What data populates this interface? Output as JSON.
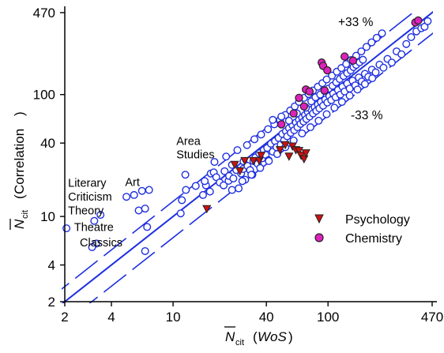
{
  "chart_data": {
    "type": "scatter",
    "scale": "log-log",
    "xlim": [
      2,
      470
    ],
    "ylim": [
      2,
      470
    ],
    "x_ticks": [
      "2",
      "4",
      "10",
      "40",
      "100",
      "470"
    ],
    "y_ticks": [
      "2",
      "4",
      "10",
      "40",
      "100",
      "470"
    ],
    "xlabel": {
      "symbol": "N",
      "subscript": "cit",
      "paren": "WoS"
    },
    "ylabel": {
      "symbol": "N",
      "subscript": "cit",
      "paren": "Correlation"
    },
    "reference_lines": [
      {
        "label": "+33 %",
        "factor": 1.33,
        "style": "dashed"
      },
      {
        "label": "",
        "factor": 1.0,
        "style": "solid"
      },
      {
        "label": "-33 %",
        "factor": 0.67,
        "style": "dashed"
      }
    ],
    "annotations": [
      {
        "text": "Literary",
        "x": 2.1,
        "y": 17.5
      },
      {
        "text": "Criticism",
        "x": 2.1,
        "y": 13.5
      },
      {
        "text": "Theory",
        "x": 2.1,
        "y": 10.4
      },
      {
        "text": "Theatre",
        "x": 2.3,
        "y": 7.6
      },
      {
        "text": "Classics",
        "x": 2.5,
        "y": 5.7
      },
      {
        "text": "Art",
        "x": 4.9,
        "y": 17.8
      },
      {
        "text": "Area",
        "x": 10.5,
        "y": 38.5
      },
      {
        "text": "Studies",
        "x": 10.5,
        "y": 30.0
      }
    ],
    "legend": {
      "position": "bottom-right",
      "items": [
        {
          "label": "Psychology",
          "marker": "triangle",
          "fill": "#cc1111"
        },
        {
          "label": "Chemistry",
          "marker": "circle",
          "fill": "#dd22bb"
        }
      ]
    },
    "series": [
      {
        "name": "",
        "marker": "open-circle",
        "points": [
          [
            2.05,
            8.0
          ],
          [
            3.1,
            9.2
          ],
          [
            3.4,
            10.3
          ],
          [
            3.2,
            6.0
          ],
          [
            3.0,
            5.6
          ],
          [
            5.0,
            14.5
          ],
          [
            5.6,
            15.0
          ],
          [
            7.0,
            16.5
          ],
          [
            6.3,
            16.2
          ],
          [
            6.0,
            11.2
          ],
          [
            6.6,
            11.6
          ],
          [
            6.8,
            8.2
          ],
          [
            6.6,
            5.2
          ],
          [
            11.2,
            10.6
          ],
          [
            11.4,
            13.6
          ],
          [
            12.1,
            16.5
          ],
          [
            12.0,
            22.0
          ],
          [
            14.0,
            17.8
          ],
          [
            15.6,
            15.0
          ],
          [
            16.3,
            18.0
          ],
          [
            16.0,
            19.5
          ],
          [
            17.3,
            16.0
          ],
          [
            17.5,
            22.5
          ],
          [
            18.3,
            23.0
          ],
          [
            19.0,
            21.0
          ],
          [
            20.0,
            19.0
          ],
          [
            21.2,
            18.0
          ],
          [
            21.5,
            23.5
          ],
          [
            22.8,
            19.6
          ],
          [
            23.0,
            21.5
          ],
          [
            24.0,
            26.5
          ],
          [
            24.5,
            20.5
          ],
          [
            25.6,
            24.0
          ],
          [
            26.5,
            17.0
          ],
          [
            27.5,
            22.5
          ],
          [
            28.3,
            24.5
          ],
          [
            28.5,
            28.3
          ],
          [
            29.2,
            20.0
          ],
          [
            30.2,
            26.0
          ],
          [
            31.4,
            24.0
          ],
          [
            32.5,
            22.0
          ],
          [
            33.0,
            28.5
          ],
          [
            34.0,
            30.5
          ],
          [
            35.2,
            27.0
          ],
          [
            36.0,
            33.0
          ],
          [
            37.6,
            30.0
          ],
          [
            38.5,
            35.0
          ],
          [
            39.6,
            32.0
          ],
          [
            40.5,
            36.5
          ],
          [
            41.3,
            29.0
          ],
          [
            42.8,
            39.5
          ],
          [
            44.0,
            34.0
          ],
          [
            45.5,
            41.5
          ],
          [
            46.5,
            37.0
          ],
          [
            48.0,
            44.0
          ],
          [
            49.5,
            39.0
          ],
          [
            50.7,
            47.5
          ],
          [
            52.0,
            42.0
          ],
          [
            53.5,
            50.0
          ],
          [
            54.5,
            45.5
          ],
          [
            56.0,
            53.0
          ],
          [
            57.5,
            48.5
          ],
          [
            59.0,
            56.0
          ],
          [
            60.5,
            51.0
          ],
          [
            62.0,
            59.0
          ],
          [
            63.5,
            54.0
          ],
          [
            65.0,
            62.0
          ],
          [
            66.5,
            57.5
          ],
          [
            68.0,
            65.0
          ],
          [
            69.5,
            60.0
          ],
          [
            71.0,
            68.0
          ],
          [
            72.5,
            63.0
          ],
          [
            74.0,
            72.0
          ],
          [
            76.0,
            66.0
          ],
          [
            78.0,
            75.0
          ],
          [
            80.0,
            70.0
          ],
          [
            82.0,
            79.0
          ],
          [
            84.0,
            73.5
          ],
          [
            86.0,
            83.0
          ],
          [
            88.0,
            77.0
          ],
          [
            90.0,
            87.0
          ],
          [
            93.0,
            81.0
          ],
          [
            96.0,
            91.0
          ],
          [
            99.0,
            86.0
          ],
          [
            102.0,
            97.0
          ],
          [
            105.0,
            90.0
          ],
          [
            108.0,
            102.0
          ],
          [
            112.0,
            95.0
          ],
          [
            116.0,
            109.0
          ],
          [
            120.0,
            100.0
          ],
          [
            124.0,
            116.0
          ],
          [
            128.0,
            106.0
          ],
          [
            133.0,
            123.0
          ],
          [
            138.0,
            112.0
          ],
          [
            144.0,
            130.0
          ],
          [
            150.0,
            119.0
          ],
          [
            158.0,
            138.0
          ],
          [
            165.0,
            128.0
          ],
          [
            173.0,
            148.0
          ],
          [
            182.0,
            140.0
          ],
          [
            192.0,
            160.0
          ],
          [
            203.0,
            152.0
          ],
          [
            215.0,
            176.0
          ],
          [
            228.0,
            166.0
          ],
          [
            242.0,
            196.0
          ],
          [
            258.0,
            183.0
          ],
          [
            277.0,
            226.0
          ],
          [
            298.0,
            214.0
          ],
          [
            320.0,
            260.0
          ],
          [
            344.0,
            296.0
          ],
          [
            372.0,
            330.0
          ],
          [
            400.0,
            350.0
          ],
          [
            420.0,
            360.0
          ],
          [
            440.0,
            400.0
          ],
          [
            18.5,
            28.0
          ],
          [
            22.0,
            31.0
          ],
          [
            26.0,
            35.0
          ],
          [
            30.0,
            38.5
          ],
          [
            33.5,
            43.0
          ],
          [
            37.0,
            47.0
          ],
          [
            41.0,
            52.0
          ],
          [
            45.0,
            57.0
          ],
          [
            49.0,
            62.0
          ],
          [
            53.0,
            68.0
          ],
          [
            57.0,
            74.0
          ],
          [
            61.0,
            80.0
          ],
          [
            65.0,
            87.0
          ],
          [
            70.0,
            94.0
          ],
          [
            75.0,
            101.0
          ],
          [
            80.0,
            108.0
          ],
          [
            86.0,
            116.0
          ],
          [
            92.0,
            124.0
          ],
          [
            98.0,
            133.0
          ],
          [
            106.0,
            143.0
          ],
          [
            114.0,
            154.0
          ],
          [
            122.0,
            165.0
          ],
          [
            131.0,
            178.0
          ],
          [
            141.0,
            192.0
          ],
          [
            152.0,
            208.0
          ],
          [
            164.0,
            226.0
          ],
          [
            177.0,
            246.0
          ],
          [
            191.0,
            268.0
          ],
          [
            206.0,
            292.0
          ],
          [
            223.0,
            318.0
          ],
          [
            24.0,
            16.5
          ],
          [
            28.0,
            19.5
          ],
          [
            32.0,
            22.0
          ],
          [
            36.5,
            25.0
          ],
          [
            41.5,
            28.5
          ],
          [
            47.0,
            32.5
          ],
          [
            53.0,
            37.0
          ],
          [
            60.0,
            42.0
          ],
          [
            68.0,
            48.0
          ],
          [
            77.0,
            54.0
          ],
          [
            87.0,
            61.0
          ],
          [
            98.0,
            69.0
          ],
          [
            110.0,
            78.0
          ],
          [
            123.0,
            87.0
          ],
          [
            138.0,
            98.0
          ],
          [
            155.0,
            110.0
          ],
          [
            173.0,
            122.0
          ],
          [
            193.0,
            136.0
          ],
          [
            44.0,
            62.0
          ],
          [
            50.0,
            66.0
          ],
          [
            56.0,
            61.0
          ],
          [
            63.0,
            70.0
          ],
          [
            72.0,
            78.0
          ],
          [
            78.0,
            88.0
          ],
          [
            83.0,
            95.0
          ],
          [
            89.0,
            100.0
          ],
          [
            95.0,
            107.0
          ],
          [
            101.0,
            112.0
          ],
          [
            107.0,
            118.0
          ],
          [
            113.0,
            126.0
          ],
          [
            119.0,
            134.0
          ],
          [
            126.0,
            142.0
          ],
          [
            133.0,
            150.0
          ],
          [
            140.0,
            158.0
          ],
          [
            146.0,
            168.0
          ],
          [
            152.0,
            175.0
          ],
          [
            160.0,
            184.0
          ],
          [
            168.0,
            193.0
          ]
        ]
      },
      {
        "name": "Psychology",
        "marker": "triangle",
        "points": [
          [
            16.5,
            11.5
          ],
          [
            25.0,
            26.5
          ],
          [
            27.0,
            23.5
          ],
          [
            29.0,
            28.5
          ],
          [
            33.0,
            28.5
          ],
          [
            36.0,
            28.5
          ],
          [
            37.0,
            31.5
          ],
          [
            49.0,
            35.0
          ],
          [
            53.0,
            38.5
          ],
          [
            56.0,
            31.0
          ],
          [
            59.0,
            37.5
          ],
          [
            62.0,
            35.0
          ],
          [
            65.0,
            34.5
          ],
          [
            67.0,
            31.5
          ],
          [
            70.0,
            29.5
          ],
          [
            72.0,
            33.0
          ]
        ]
      },
      {
        "name": "Chemistry",
        "marker": "circle",
        "points": [
          [
            50.0,
            57.0
          ],
          [
            60.0,
            70.0
          ],
          [
            65.0,
            94.0
          ],
          [
            70.0,
            80.0
          ],
          [
            72.0,
            110.0
          ],
          [
            76.0,
            106.0
          ],
          [
            91.0,
            183.0
          ],
          [
            93.0,
            172.0
          ],
          [
            95.0,
            108.0
          ],
          [
            99.0,
            158.0
          ],
          [
            128.0,
            205.0
          ],
          [
            145.0,
            190.0
          ],
          [
            366.0,
            390.0
          ],
          [
            382.0,
            405.0
          ]
        ]
      }
    ]
  }
}
